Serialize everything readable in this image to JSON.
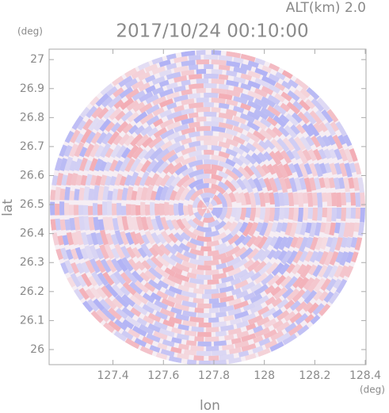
{
  "chart_data": {
    "type": "image",
    "title": "2017/10/24 00:10:00",
    "subtitle": "ALT(km) 2.0",
    "x_label": "lon",
    "x_unit": "(deg)",
    "y_label": "lat",
    "y_unit": "(deg)",
    "xlim": [
      127.147,
      128.403
    ],
    "ylim": [
      25.948,
      27.036
    ],
    "xticks": [
      127.4,
      127.6,
      127.8,
      128.0,
      128.2,
      128.4
    ],
    "yticks": [
      26.0,
      26.1,
      26.2,
      26.3,
      26.4,
      26.5,
      26.6,
      26.7,
      26.8,
      26.9,
      27.0
    ]
  }
}
